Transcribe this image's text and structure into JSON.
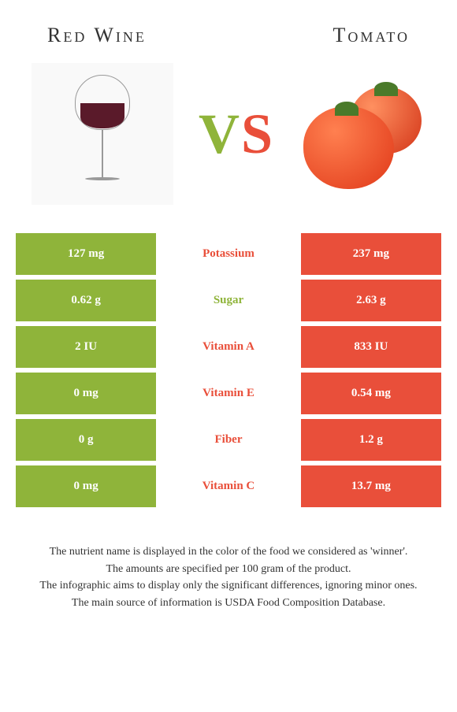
{
  "header": {
    "left_title": "Red Wine",
    "right_title": "Tomato"
  },
  "vs": {
    "v": "V",
    "s": "S"
  },
  "rows": [
    {
      "left": "127 mg",
      "mid": "Potassium",
      "right": "237 mg",
      "winner": "red"
    },
    {
      "left": "0.62 g",
      "mid": "Sugar",
      "right": "2.63 g",
      "winner": "green"
    },
    {
      "left": "2 IU",
      "mid": "Vitamin A",
      "right": "833 IU",
      "winner": "red"
    },
    {
      "left": "0 mg",
      "mid": "Vitamin E",
      "right": "0.54 mg",
      "winner": "red"
    },
    {
      "left": "0 g",
      "mid": "Fiber",
      "right": "1.2 g",
      "winner": "red"
    },
    {
      "left": "0 mg",
      "mid": "Vitamin C",
      "right": "13.7 mg",
      "winner": "red"
    }
  ],
  "footer": {
    "line1": "The nutrient name is displayed in the color of the food we considered as 'winner'.",
    "line2": "The amounts are specified per 100 gram of the product.",
    "line3": "The infographic aims to display only the significant differences, ignoring minor ones.",
    "line4": "The main source of information is USDA Food Composition Database."
  },
  "colors": {
    "green": "#8fb43a",
    "red": "#e94f3a",
    "background": "#ffffff"
  }
}
